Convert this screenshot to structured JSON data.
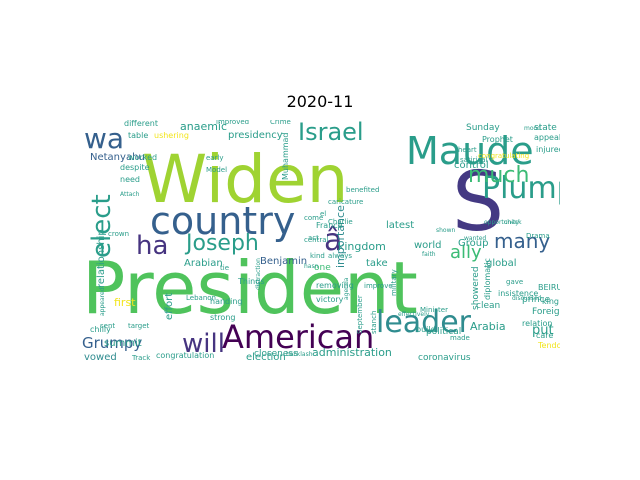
{
  "title": "2020-11",
  "palette": {
    "lime": "#9fd332",
    "green": "#4fc35c",
    "teal": "#2a9d8a",
    "cyan": "#2f8c8f",
    "blue": "#35608d",
    "navy": "#443983",
    "indigo": "#463480",
    "purple": "#440154",
    "yellow": "#f2e51d",
    "seafoam": "#3bbb75"
  },
  "words": [
    {
      "text": "President"
    },
    {
      "text": "Widen"
    },
    {
      "text": "S"
    },
    {
      "text": "Maude"
    },
    {
      "text": "country"
    },
    {
      "text": "American"
    },
    {
      "text": "leader"
    },
    {
      "text": "Plump"
    },
    {
      "text": "wa"
    },
    {
      "text": "ha"
    },
    {
      "text": "Joseph"
    },
    {
      "text": "Israel"
    },
    {
      "text": "elect"
    },
    {
      "text": "will"
    },
    {
      "text": "much"
    },
    {
      "text": "many"
    },
    {
      "text": "ally"
    },
    {
      "text": "â"
    },
    {
      "text": "Grumpy"
    },
    {
      "text": "administration"
    },
    {
      "text": "kingdom"
    },
    {
      "text": "importance"
    },
    {
      "text": "Arabian"
    },
    {
      "text": "Benjamin"
    },
    {
      "text": "anaemic"
    },
    {
      "text": "presidency"
    },
    {
      "text": "Netanyahu"
    },
    {
      "text": "relationship"
    },
    {
      "text": "election"
    },
    {
      "text": "vowed"
    },
    {
      "text": "summit"
    },
    {
      "text": "first"
    },
    {
      "text": "world"
    },
    {
      "text": "global"
    },
    {
      "text": "Arabia"
    },
    {
      "text": "put"
    },
    {
      "text": "latest"
    },
    {
      "text": "take"
    },
    {
      "text": "Group"
    },
    {
      "text": "control"
    },
    {
      "text": "Sunday"
    },
    {
      "text": "coronavirus"
    },
    {
      "text": "political"
    },
    {
      "text": "state"
    },
    {
      "text": "effort"
    },
    {
      "text": "one"
    },
    {
      "text": "victory"
    },
    {
      "text": "removing"
    },
    {
      "text": "prince"
    },
    {
      "text": "Foreign"
    },
    {
      "text": "relation"
    },
    {
      "text": "king"
    },
    {
      "text": "BEIRUT"
    },
    {
      "text": "clean"
    },
    {
      "text": "closeness"
    },
    {
      "text": "congratulation"
    },
    {
      "text": "improved"
    },
    {
      "text": "Crime"
    },
    {
      "text": "ushering"
    },
    {
      "text": "different"
    },
    {
      "text": "table"
    },
    {
      "text": "worked"
    },
    {
      "text": "despite"
    },
    {
      "text": "need"
    },
    {
      "text": "Things"
    },
    {
      "text": "early"
    },
    {
      "text": "Model"
    },
    {
      "text": "France"
    },
    {
      "text": "caricature"
    },
    {
      "text": "benefited"
    },
    {
      "text": "Prophet"
    },
    {
      "text": "congratulating"
    },
    {
      "text": "Muhammad"
    },
    {
      "text": "Drama"
    },
    {
      "text": "appeal"
    },
    {
      "text": "injured"
    },
    {
      "text": "insistence"
    },
    {
      "text": "shown"
    },
    {
      "text": "wanted"
    },
    {
      "text": "showered"
    },
    {
      "text": "diplomatic"
    },
    {
      "text": "care"
    },
    {
      "text": "Tendo"
    },
    {
      "text": "build"
    },
    {
      "text": "September"
    },
    {
      "text": "improve"
    },
    {
      "text": "Charlie"
    },
    {
      "text": "always"
    },
    {
      "text": "act"
    },
    {
      "text": "handing"
    },
    {
      "text": "strong"
    },
    {
      "text": "chilly"
    },
    {
      "text": "target"
    },
    {
      "text": "sent"
    },
    {
      "text": "Lebanon"
    },
    {
      "text": "Track"
    },
    {
      "text": "mood"
    },
    {
      "text": "heart"
    },
    {
      "text": "satirical"
    },
    {
      "text": "military"
    },
    {
      "text": "gave"
    },
    {
      "text": "discussed"
    },
    {
      "text": "stanch"
    },
    {
      "text": "opportunity"
    },
    {
      "text": "check"
    },
    {
      "text": "central"
    },
    {
      "text": "kind"
    },
    {
      "text": "hasn"
    },
    {
      "text": "come"
    },
    {
      "text": "el"
    },
    {
      "text": "tie"
    },
    {
      "text": "crown"
    },
    {
      "text": "Attach"
    },
    {
      "text": "appeared"
    },
    {
      "text": "faith"
    },
    {
      "text": "agenda"
    },
    {
      "text": "distraction"
    },
    {
      "text": "effectively"
    },
    {
      "text": "Minister"
    },
    {
      "text": "made"
    },
    {
      "text": "backlash"
    },
    {
      "text": "supportive"
    }
  ]
}
